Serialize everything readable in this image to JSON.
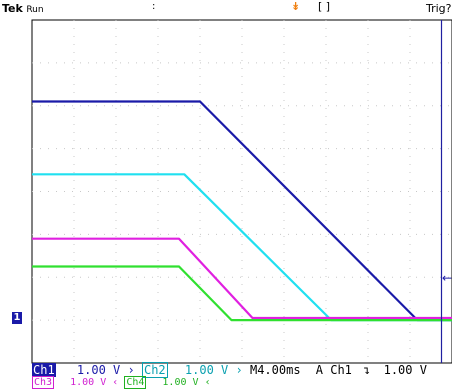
{
  "header": {
    "brand": "Tek",
    "run_state": "Run",
    "trigger_status": "Trig?",
    "position_bracket": "[ ]",
    "trigger_marker_color": "#f08010"
  },
  "status": {
    "ch1": {
      "label": "Ch1",
      "scale": "1.00 V"
    },
    "ch2": {
      "label": "Ch2",
      "scale": "1.00 V"
    },
    "ch3": {
      "label": "Ch3",
      "scale": "1.00 V"
    },
    "ch4": {
      "label": "Ch4",
      "scale": "1.00 V"
    },
    "timebase": "M4.00ms",
    "trigger_source": "A  Ch1",
    "trigger_slope_icon": "falling-edge-icon",
    "trigger_level": "1.00 V"
  },
  "markers": {
    "ground_reference": "1"
  },
  "chart_data": {
    "type": "line",
    "title": "",
    "xlabel": "",
    "ylabel": "",
    "x_divisions": 10,
    "y_divisions": 8,
    "time_per_div_ms": 4.0,
    "volts_per_div": 1.0,
    "xlim_ms": [
      -39,
      1
    ],
    "ylim_div": [
      -1,
      7
    ],
    "grid": true,
    "series": [
      {
        "name": "Ch1",
        "color": "#1a1aa8",
        "t_ms": [
          -39,
          -23,
          -2.3,
          1
        ],
        "v": [
          5.1,
          5.1,
          0.0,
          0.0
        ]
      },
      {
        "name": "Ch2",
        "color": "#20e0f0",
        "t_ms": [
          -39,
          -24.5,
          -10.5,
          1
        ],
        "v": [
          3.4,
          3.4,
          0.0,
          0.0
        ]
      },
      {
        "name": "Ch3",
        "color": "#e020e0",
        "t_ms": [
          -39,
          -25,
          -18,
          1
        ],
        "v": [
          1.9,
          1.9,
          0.05,
          0.05
        ]
      },
      {
        "name": "Ch4",
        "color": "#30e030",
        "t_ms": [
          -39,
          -25,
          -20,
          1
        ],
        "v": [
          1.25,
          1.25,
          0.0,
          0.0
        ]
      }
    ]
  }
}
